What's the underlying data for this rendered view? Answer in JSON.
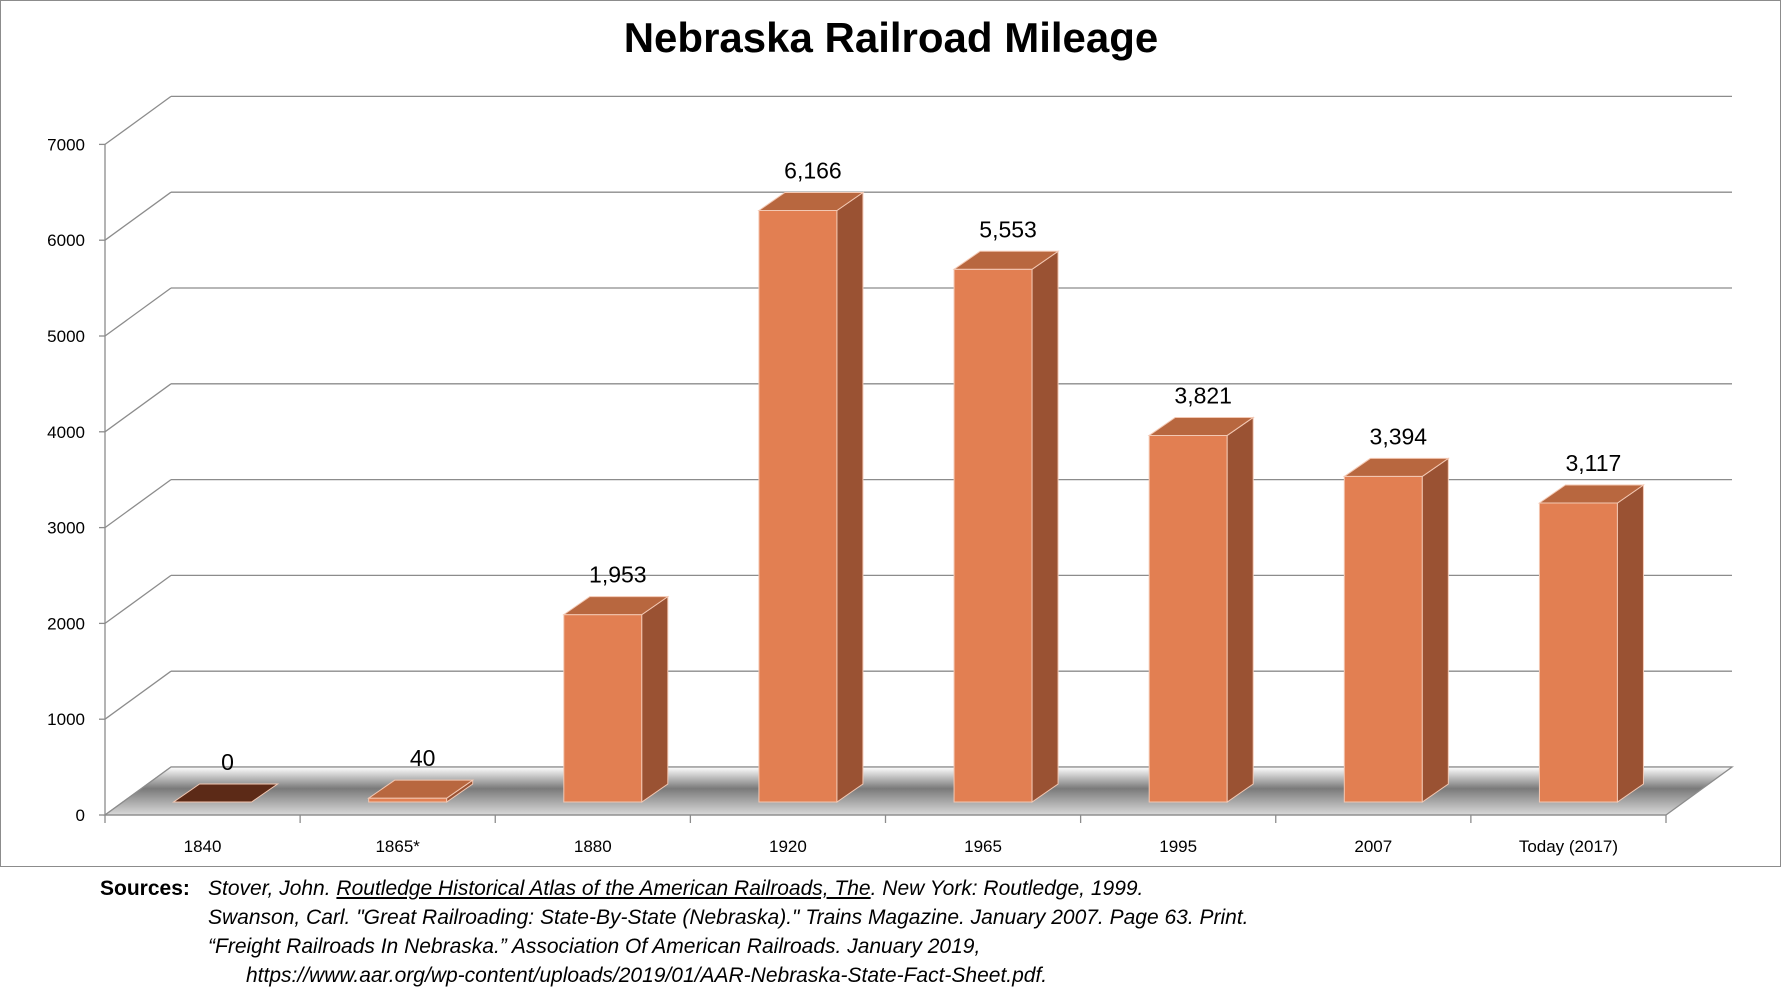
{
  "chart_data": {
    "type": "bar",
    "title": "Nebraska Railroad Mileage",
    "categories": [
      "1840",
      "1865*",
      "1880",
      "1920",
      "1965",
      "1995",
      "2007",
      "Today  (2017)"
    ],
    "values": [
      0,
      40,
      1953,
      6166,
      5553,
      3821,
      3394,
      3117
    ],
    "data_labels": [
      "0",
      "40",
      "1,953",
      "6,166",
      "5,553",
      "3,821",
      "3,394",
      "3,117"
    ],
    "y_ticks": [
      "0",
      "1000",
      "2000",
      "3000",
      "4000",
      "5000",
      "6000",
      "7000"
    ],
    "ylim": [
      0,
      7000
    ],
    "xlabel": "",
    "ylabel": "",
    "grid": true,
    "three_d": true,
    "colors": {
      "bar_front": "#e27f52",
      "bar_side": "#9a5233",
      "bar_top": "#b8673f",
      "zero_bar": "#5c2a17",
      "grid": "#8c8c8c"
    }
  },
  "sources": {
    "label": "Sources:",
    "lines": [
      {
        "before": "Stover, John. ",
        "underlined": "Routledge Historical Atlas of the American Railroads, The",
        "after": ". New York: Routledge, 1999."
      },
      {
        "before": "Swanson, Carl. \"Great Railroading: State-By-State (Nebraska).\" Trains Magazine. January 2007. Page 63. Print.",
        "underlined": "",
        "after": ""
      },
      {
        "before": "“Freight Railroads In Nebraska.” Association Of American Railroads. January 2019,",
        "underlined": "",
        "after": ""
      },
      {
        "before": "https://www.aar.org/wp-content/uploads/2019/01/AAR-Nebraska-State-Fact-Sheet.pdf.",
        "underlined": "",
        "after": ""
      }
    ]
  }
}
